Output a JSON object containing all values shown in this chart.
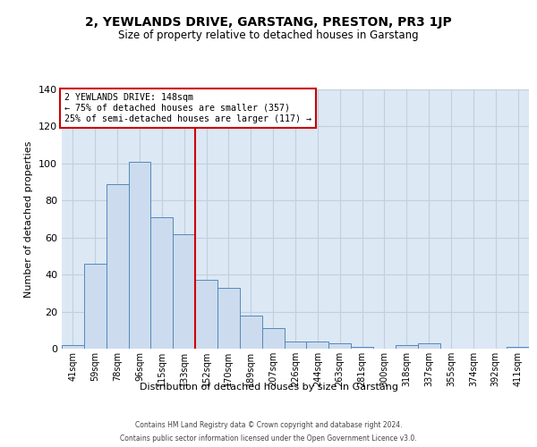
{
  "title": "2, YEWLANDS DRIVE, GARSTANG, PRESTON, PR3 1JP",
  "subtitle": "Size of property relative to detached houses in Garstang",
  "xlabel": "Distribution of detached houses by size in Garstang",
  "ylabel": "Number of detached properties",
  "bar_labels": [
    "41sqm",
    "59sqm",
    "78sqm",
    "96sqm",
    "115sqm",
    "133sqm",
    "152sqm",
    "170sqm",
    "189sqm",
    "207sqm",
    "226sqm",
    "244sqm",
    "263sqm",
    "281sqm",
    "300sqm",
    "318sqm",
    "337sqm",
    "355sqm",
    "374sqm",
    "392sqm",
    "411sqm"
  ],
  "bar_values": [
    2,
    46,
    89,
    101,
    71,
    62,
    37,
    33,
    18,
    11,
    4,
    4,
    3,
    1,
    0,
    2,
    3,
    0,
    0,
    0,
    1
  ],
  "bar_color": "#ccdcee",
  "bar_edge_color": "#5588bb",
  "vline_color": "#cc0000",
  "vline_index": 6,
  "annotation_line1": "2 YEWLANDS DRIVE: 148sqm",
  "annotation_line2": "← 75% of detached houses are smaller (357)",
  "annotation_line3": "25% of semi-detached houses are larger (117) →",
  "annotation_box_edgecolor": "#cc0000",
  "ylim": [
    0,
    140
  ],
  "yticks": [
    0,
    20,
    40,
    60,
    80,
    100,
    120,
    140
  ],
  "grid_color": "#c0d0e0",
  "background_color": "#dce8f4",
  "footer_line1": "Contains HM Land Registry data © Crown copyright and database right 2024.",
  "footer_line2": "Contains public sector information licensed under the Open Government Licence v3.0."
}
